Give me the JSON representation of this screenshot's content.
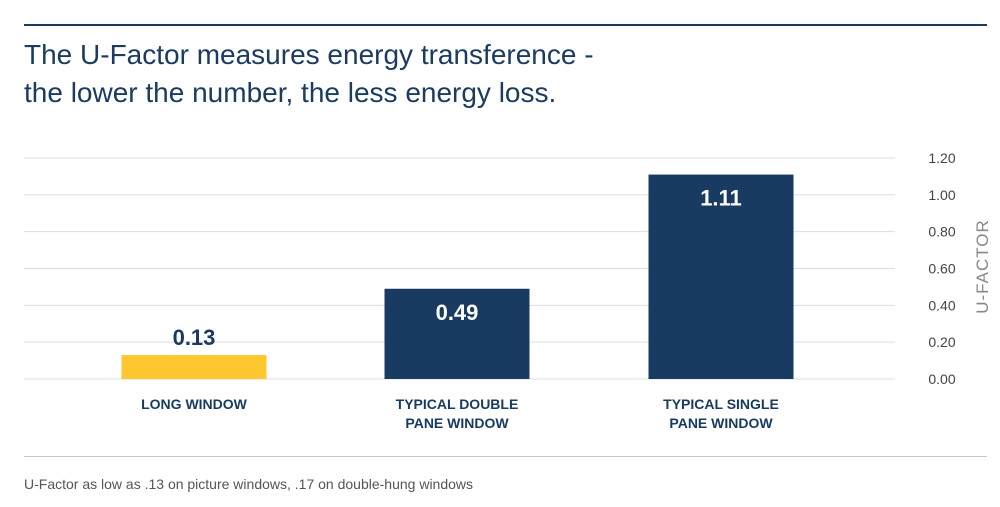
{
  "title_lines": [
    "The U-Factor measures energy transference -",
    "the lower the number, the less energy loss."
  ],
  "footnote": "U-Factor as low as .13 on picture windows, .17 on double-hung windows",
  "colors": {
    "title": "#1b3b60",
    "highlight_bar": "#fdc82f",
    "standard_bar": "#193b62",
    "grid": "#dddddd",
    "axis_text": "#444444",
    "ylabel": "#888888"
  },
  "chart_data": {
    "type": "bar",
    "categories": [
      [
        "LONG WINDOW"
      ],
      [
        "TYPICAL DOUBLE",
        "PANE WINDOW"
      ],
      [
        "TYPICAL SINGLE",
        "PANE WINDOW"
      ]
    ],
    "values": [
      0.13,
      0.49,
      1.11
    ],
    "value_labels": [
      "0.13",
      "0.49",
      "1.11"
    ],
    "highlight_index": 0,
    "ylabel": "U-FACTOR",
    "ylim": [
      0,
      1.2
    ],
    "yticks": [
      0,
      0.2,
      0.4,
      0.6,
      0.8,
      1.0,
      1.2
    ],
    "ytick_labels": [
      "0.00",
      "0.20",
      "0.40",
      "0.60",
      "0.80",
      "1.00",
      "1.20"
    ],
    "y_axis_side": "right",
    "grid": true
  }
}
